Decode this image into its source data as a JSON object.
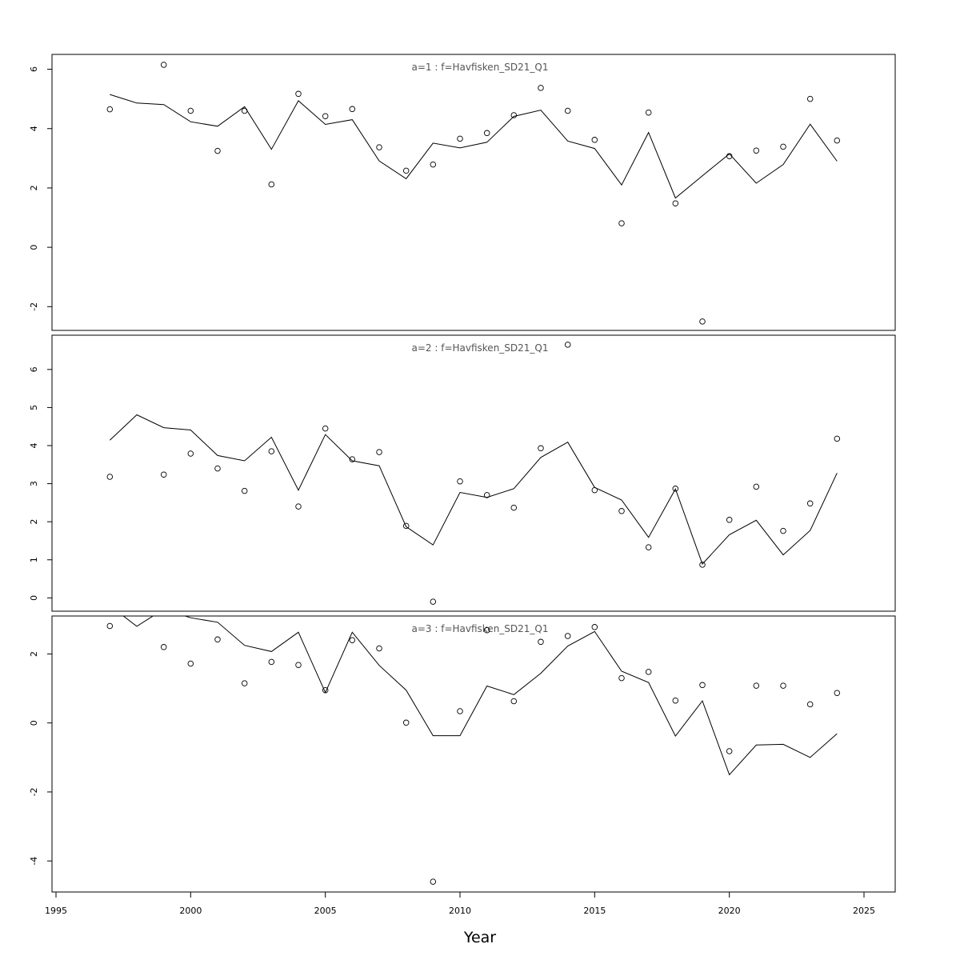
{
  "chart_data": {
    "type": "line",
    "xlabel": "Year",
    "xlim": [
      1995,
      2025
    ],
    "x_ticks": [
      1995,
      2000,
      2005,
      2010,
      2015,
      2020,
      2025
    ],
    "panels": [
      {
        "title": "a=1  :  f=Havfisken_SD21_Q1",
        "y_range": [
          -2.8,
          6.5
        ],
        "y_ticks": [
          -2,
          0,
          2,
          4,
          6
        ],
        "points": {
          "x": [
            1997,
            1999,
            2000,
            2001,
            2002,
            2003,
            2004,
            2005,
            2006,
            2007,
            2008,
            2009,
            2010,
            2011,
            2012,
            2013,
            2014,
            2015,
            2016,
            2017,
            2018,
            2019,
            2020,
            2021,
            2022,
            2023,
            2024
          ],
          "y": [
            4.65,
            6.15,
            4.6,
            3.25,
            4.6,
            2.12,
            5.17,
            4.42,
            4.66,
            3.37,
            2.58,
            2.79,
            3.66,
            3.85,
            4.45,
            5.37,
            4.6,
            3.62,
            0.81,
            4.54,
            1.48,
            -2.5,
            3.07,
            3.26,
            3.39,
            5.0,
            3.6
          ]
        },
        "line": {
          "x": [
            1997,
            1998,
            1999,
            2000,
            2001,
            2002,
            2003,
            2004,
            2005,
            2006,
            2007,
            2008,
            2009,
            2010,
            2011,
            2012,
            2013,
            2014,
            2015,
            2016,
            2017,
            2018,
            2019,
            2020,
            2021,
            2022,
            2023,
            2024
          ],
          "y": [
            5.15,
            4.86,
            4.81,
            4.23,
            4.08,
            4.74,
            3.3,
            4.94,
            4.14,
            4.3,
            2.91,
            2.31,
            3.51,
            3.35,
            3.54,
            4.41,
            4.62,
            3.58,
            3.33,
            2.1,
            3.87,
            1.66,
            2.41,
            3.15,
            2.16,
            2.79,
            4.15,
            2.9
          ]
        }
      },
      {
        "title": "a=2  :  f=Havfisken_SD21_Q1",
        "y_range": [
          -0.35,
          6.9
        ],
        "y_ticks": [
          0,
          1,
          2,
          3,
          4,
          5,
          6
        ],
        "points": {
          "x": [
            1997,
            1999,
            2000,
            2001,
            2002,
            2003,
            2004,
            2005,
            2006,
            2007,
            2008,
            2009,
            2010,
            2011,
            2012,
            2013,
            2014,
            2015,
            2016,
            2017,
            2018,
            2019,
            2020,
            2021,
            2022,
            2023,
            2024
          ],
          "y": [
            3.18,
            3.24,
            3.79,
            3.4,
            2.81,
            3.85,
            2.4,
            4.45,
            3.64,
            3.83,
            1.89,
            -0.1,
            3.06,
            2.7,
            2.37,
            3.93,
            6.65,
            2.83,
            2.28,
            1.33,
            2.87,
            0.87,
            2.05,
            2.92,
            1.76,
            2.48,
            4.18
          ]
        },
        "line": {
          "x": [
            1997,
            1998,
            1999,
            2000,
            2001,
            2002,
            2003,
            2004,
            2005,
            2006,
            2007,
            2008,
            2009,
            2010,
            2011,
            2012,
            2013,
            2014,
            2015,
            2016,
            2017,
            2018,
            2019,
            2020,
            2021,
            2022,
            2023,
            2024
          ],
          "y": [
            4.14,
            4.81,
            4.47,
            4.41,
            3.74,
            3.6,
            4.22,
            2.83,
            4.29,
            3.6,
            3.47,
            1.87,
            1.39,
            2.77,
            2.64,
            2.87,
            3.69,
            4.09,
            2.9,
            2.57,
            1.59,
            2.86,
            0.89,
            1.66,
            2.04,
            1.13,
            1.77,
            3.28
          ]
        }
      },
      {
        "title": "a=3  :  f=Havfisken_SD21_Q1",
        "y_range": [
          -4.9,
          3.1
        ],
        "y_ticks": [
          -4,
          -2,
          0,
          2
        ],
        "points": {
          "x": [
            1997,
            1999,
            2000,
            2001,
            2002,
            2003,
            2004,
            2005,
            2006,
            2007,
            2008,
            2009,
            2010,
            2011,
            2012,
            2013,
            2014,
            2015,
            2016,
            2017,
            2018,
            2019,
            2020,
            2021,
            2022,
            2023,
            2024
          ],
          "y": [
            2.81,
            2.2,
            1.72,
            2.42,
            1.15,
            1.77,
            1.68,
            0.95,
            2.4,
            2.16,
            0.01,
            -4.6,
            0.34,
            2.69,
            0.63,
            2.35,
            2.52,
            2.78,
            1.3,
            1.48,
            0.65,
            1.1,
            -0.82,
            1.08,
            1.08,
            0.54,
            0.87
          ]
        },
        "line": {
          "x": [
            1997,
            1998,
            1999,
            2000,
            2001,
            2002,
            2003,
            2004,
            2005,
            2006,
            2007,
            2008,
            2009,
            2010,
            2011,
            2012,
            2013,
            2014,
            2015,
            2016,
            2017,
            2018,
            2019,
            2020,
            2021,
            2022,
            2023,
            2024
          ],
          "y": [
            3.4,
            2.8,
            3.3,
            3.05,
            2.92,
            2.25,
            2.07,
            2.63,
            0.88,
            2.63,
            1.67,
            0.95,
            -0.37,
            -0.37,
            1.07,
            0.82,
            1.44,
            2.23,
            2.65,
            1.5,
            1.17,
            -0.38,
            0.64,
            -1.5,
            -0.64,
            -0.62,
            -1.0,
            -0.31
          ]
        }
      }
    ]
  }
}
